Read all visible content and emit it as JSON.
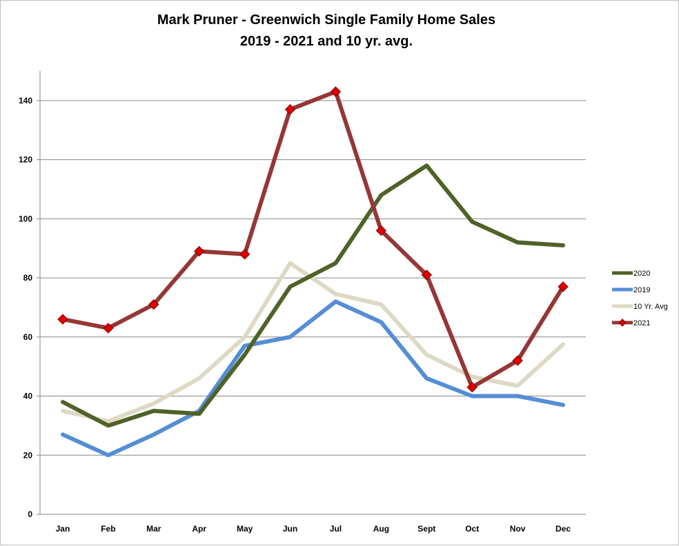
{
  "chart_data": {
    "type": "line",
    "title": [
      "Mark Pruner - Greenwich Single Family Home Sales",
      "2019 - 2021 and 10 yr. avg."
    ],
    "categories": [
      "Jan",
      "Feb",
      "Mar",
      "Apr",
      "May",
      "Jun",
      "Jul",
      "Aug",
      "Sept",
      "Oct",
      "Nov",
      "Dec"
    ],
    "ylim": [
      0,
      150
    ],
    "yticks": [
      0,
      20,
      40,
      60,
      80,
      100,
      120,
      140
    ],
    "grid": true,
    "legend": "right",
    "series": [
      {
        "name": "2020",
        "color": "#4f6228",
        "marker": "none",
        "values": [
          38,
          30,
          35,
          34,
          54,
          77,
          85,
          108,
          118,
          99,
          92,
          91
        ]
      },
      {
        "name": "2019",
        "color": "#558ed5",
        "marker": "none",
        "values": [
          27,
          20,
          27,
          35,
          57,
          60,
          72,
          65,
          46,
          40,
          40,
          37
        ]
      },
      {
        "name": "10 Yr. Avg",
        "color": "#ddd9c3",
        "marker": "none",
        "values": [
          35,
          31.5,
          37.5,
          46,
          60,
          85,
          74.5,
          71,
          54,
          46.5,
          43.5,
          57.5
        ]
      },
      {
        "name": "2021",
        "color": "#953735",
        "marker": "diamond",
        "marker_color": "#e00000",
        "values": [
          66,
          63,
          71,
          89,
          88,
          137,
          143,
          96,
          81,
          43,
          52,
          77
        ]
      }
    ]
  }
}
